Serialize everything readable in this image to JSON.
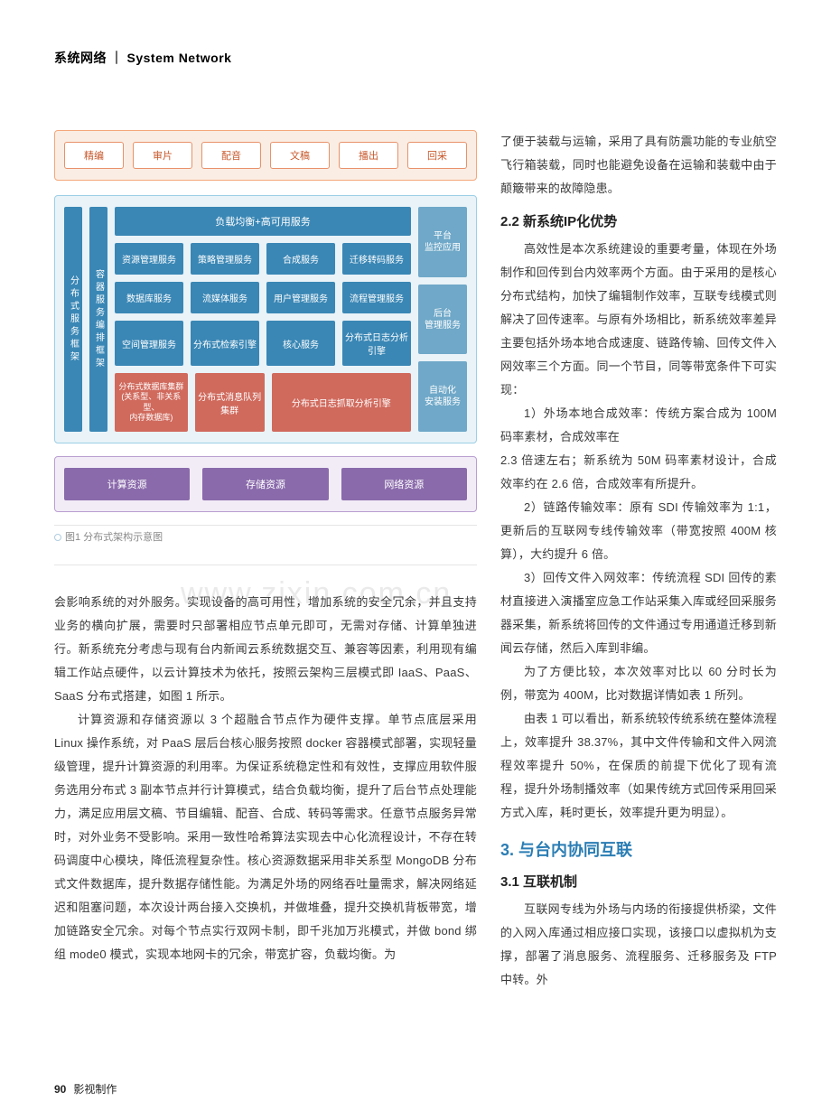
{
  "header": {
    "cn": "系统网络",
    "divider": "｜",
    "en": "System Network"
  },
  "diagram": {
    "top_border": "#f4a77a",
    "top_bg": "#faeee4",
    "top_cell_border": "#e8916a",
    "top_text_color": "#c85a2e",
    "mid_border": "#9ccfe6",
    "mid_bg": "#e9f3f8",
    "svc_bg": "#3a87b5",
    "svc_red": "#d06a5d",
    "right_bg": "#6fa8c8",
    "bot_border": "#b89ed0",
    "bot_bg": "#f2ecf7",
    "bot_cell_bg": "#8a6aab",
    "top": [
      "精编",
      "审片",
      "配音",
      "文稿",
      "播出",
      "回采"
    ],
    "left_label": "分布式服务框架",
    "left_label2": "容器服务编排框架",
    "lb": "负载均衡+高可用服务",
    "row1": [
      "资源管理服务",
      "策略管理服务",
      "合成服务",
      "迁移转码服务"
    ],
    "row2": [
      "数据库服务",
      "流媒体服务",
      "用户管理服务",
      "流程管理服务"
    ],
    "row3": [
      "空间管理服务",
      "分布式检索引擎",
      "核心服务",
      "分布式日志分析引擎"
    ],
    "row4_a": "分布式数据库集群\n(关系型、非关系型、\n内存数据库)",
    "row4_b": "分布式消息队列集群",
    "row4_c": "分布式日志抓取分析引擎",
    "right": [
      "平台\n监控应用",
      "后台\n管理服务",
      "自动化\n安装服务"
    ],
    "bottom": [
      "计算资源",
      "存储资源",
      "网络资源"
    ]
  },
  "caption": "图1 分布式架构示意图",
  "left_p1": "会影响系统的对外服务。实现设备的高可用性，增加系统的安全冗余，并且支持业务的横向扩展，需要时只部署相应节点单元即可，无需对存储、计算单独进行。新系统充分考虑与现有台内新闻云系统数据交互、兼容等因素，利用现有编辑工作站点硬件，以云计算技术为依托，按照云架构三层模式即 IaaS、PaaS、SaaS 分布式搭建，如图 1 所示。",
  "left_p2": "计算资源和存储资源以 3 个超融合节点作为硬件支撑。单节点底层采用 Linux 操作系统，对 PaaS 层后台核心服务按照 docker 容器模式部署，实现轻量级管理，提升计算资源的利用率。为保证系统稳定性和有效性，支撑应用软件服务选用分布式 3 副本节点并行计算模式，结合负载均衡，提升了后台节点处理能力，满足应用层文稿、节目编辑、配音、合成、转码等需求。任意节点服务异常时，对外业务不受影响。采用一致性哈希算法实现去中心化流程设计，不存在转码调度中心模块，降低流程复杂性。核心资源数据采用非关系型 MongoDB 分布式文件数据库，提升数据存储性能。为满足外场的网络吞吐量需求，解决网络延迟和阻塞问题，本次设计两台接入交换机，并做堆叠，提升交换机背板带宽，增加链路安全冗余。对每个节点实行双网卡制，即千兆加万兆模式，并做 bond 绑组 mode0 模式，实现本地网卡的冗余，带宽扩容，负载均衡。为",
  "right_p0": "了便于装载与运输，采用了具有防震功能的专业航空飞行箱装载，同时也能避免设备在运输和装载中由于颠簸带来的故障隐患。",
  "h22": "2.2 新系统IP化优势",
  "right_p1": "高效性是本次系统建设的重要考量，体现在外场制作和回传到台内效率两个方面。由于采用的是核心分布式结构，加快了编辑制作效率，互联专线模式则解决了回传速率。与原有外场相比，新系统效率差异主要包括外场本地合成速度、链路传输、回传文件入网效率三个方面。同一个节目，同等带宽条件下可实现：",
  "right_p2": "1）外场本地合成效率：传统方案合成为 100M 码率素材，合成效率在",
  "wide_p1": "2.3 倍速左右；新系统为 50M 码率素材设计，合成效率约在 2.6 倍，合成效率有所提升。",
  "wide_p2": "2）链路传输效率：原有 SDI 传输效率为 1:1，更新后的互联网专线传输效率（带宽按照 400M 核算），大约提升 6 倍。",
  "wide_p3": "3）回传文件入网效率：传统流程 SDI 回传的素材直接进入演播室应急工作站采集入库或经回采服务器采集，新系统将回传的文件通过专用通道迁移到新闻云存储，然后入库到非编。",
  "wide_p4": "为了方便比较，本次效率对比以 60 分时长为例，带宽为 400M，比对数据详情如表 1 所列。",
  "wide_p5": "由表 1 可以看出，新系统较传统系统在整体流程上，效率提升 38.37%，其中文件传输和文件入网流程效率提升 50%，在保质的前提下优化了现有流程，提升外场制播效率（如果传统方式回传采用回采方式入库，耗时更长，效率提升更为明显）。",
  "h3": "3. 与台内协同互联",
  "h31": "3.1 互联机制",
  "wide_p6": "互联网专线为外场与内场的衔接提供桥梁，文件的入网入库通过相应接口实现，该接口以虚拟机为支撑，部署了消息服务、流程服务、迁移服务及 FTP 中转。外",
  "watermark": "www.zixin.com.cn",
  "footer": {
    "page": "90",
    "title": "影视制作"
  }
}
